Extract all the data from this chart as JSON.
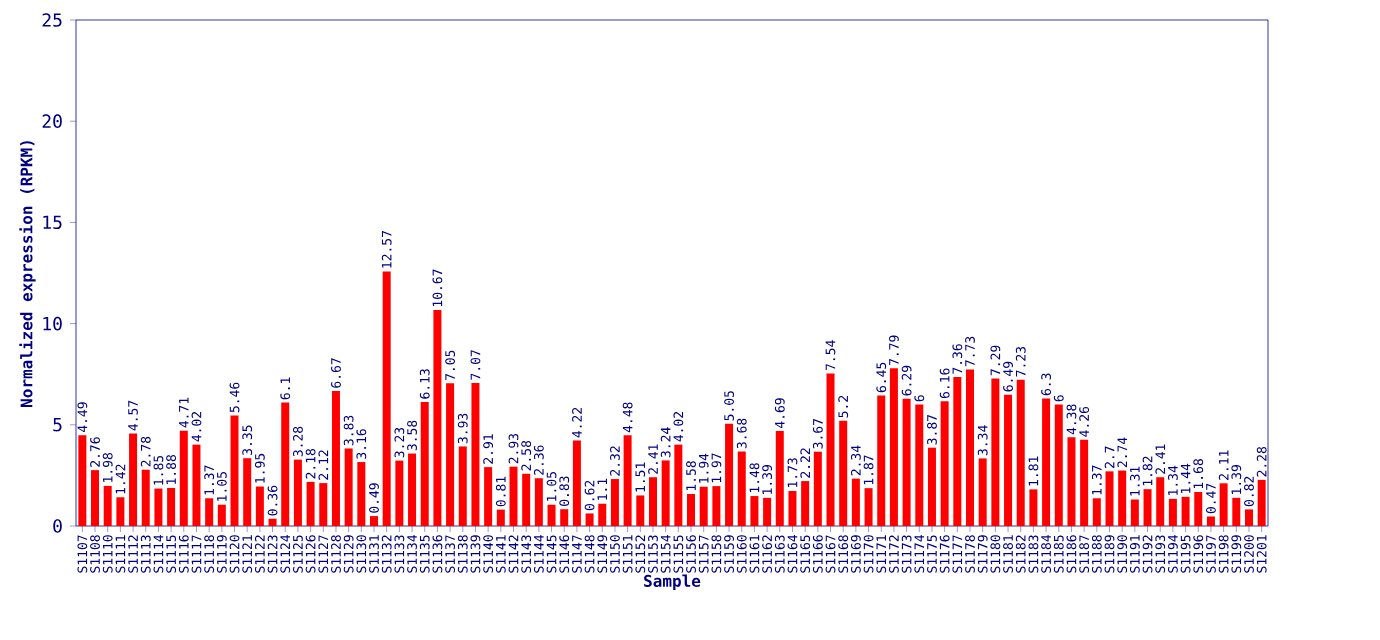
{
  "chart_data": {
    "type": "bar",
    "xlabel": "Sample",
    "ylabel": "Normalized expression (RPKM)",
    "categories": [
      "S1107",
      "S1108",
      "S1110",
      "S1111",
      "S1112",
      "S1113",
      "S1114",
      "S1115",
      "S1116",
      "S1117",
      "S1118",
      "S1119",
      "S1120",
      "S1121",
      "S1122",
      "S1123",
      "S1124",
      "S1125",
      "S1126",
      "S1127",
      "S1128",
      "S1129",
      "S1130",
      "S1131",
      "S1132",
      "S1133",
      "S1134",
      "S1135",
      "S1136",
      "S1137",
      "S1138",
      "S1139",
      "S1140",
      "S1141",
      "S1142",
      "S1143",
      "S1144",
      "S1145",
      "S1146",
      "S1147",
      "S1148",
      "S1149",
      "S1150",
      "S1151",
      "S1152",
      "S1153",
      "S1154",
      "S1155",
      "S1156",
      "S1157",
      "S1158",
      "S1159",
      "S1160",
      "S1161",
      "S1162",
      "S1163",
      "S1164",
      "S1165",
      "S1166",
      "S1167",
      "S1168",
      "S1169",
      "S1170",
      "S1171",
      "S1172",
      "S1173",
      "S1174",
      "S1175",
      "S1176",
      "S1177",
      "S1178",
      "S1179",
      "S1180",
      "S1181",
      "S1182",
      "S1183",
      "S1184",
      "S1185",
      "S1186",
      "S1187",
      "S1188",
      "S1189",
      "S1190",
      "S1191",
      "S1192",
      "S1193",
      "S1194",
      "S1195",
      "S1196",
      "S1197",
      "S1198",
      "S1199",
      "S1200",
      "S1201"
    ],
    "values": [
      4.49,
      2.76,
      1.98,
      1.42,
      4.57,
      2.78,
      1.85,
      1.88,
      4.71,
      4.02,
      1.37,
      1.05,
      5.46,
      3.35,
      1.95,
      0.36,
      6.1,
      3.28,
      2.18,
      2.12,
      6.67,
      3.83,
      3.16,
      0.49,
      12.57,
      3.23,
      3.58,
      6.13,
      10.67,
      7.05,
      3.93,
      7.07,
      2.91,
      0.81,
      2.93,
      2.58,
      2.36,
      1.05,
      0.83,
      4.22,
      0.62,
      1.1,
      2.32,
      4.48,
      1.51,
      2.41,
      3.24,
      4.02,
      1.58,
      1.94,
      1.97,
      5.05,
      3.68,
      1.48,
      1.39,
      4.69,
      1.73,
      2.22,
      3.67,
      7.54,
      5.2,
      2.34,
      1.87,
      6.45,
      7.79,
      6.29,
      6,
      3.87,
      6.16,
      7.36,
      7.73,
      3.34,
      7.29,
      6.49,
      7.23,
      1.81,
      6.3,
      6,
      4.38,
      4.26,
      1.37,
      2.7,
      2.74,
      1.31,
      1.82,
      2.41,
      1.34,
      1.44,
      1.68,
      0.47,
      2.11,
      1.39,
      0.82,
      2.28
    ],
    "value_labels": [
      "4.49",
      "2.76",
      "1.98",
      "1.42",
      "4.57",
      "2.78",
      "1.85",
      "1.88",
      "4.71",
      "4.02",
      "1.37",
      "1.05",
      "5.46",
      "3.35",
      "1.95",
      "0.36",
      "6.1",
      "3.28",
      "2.18",
      "2.12",
      "6.67",
      "3.83",
      "3.16",
      "0.49",
      "12.57",
      "3.23",
      "3.58",
      "6.13",
      "10.67",
      "7.05",
      "3.93",
      "7.07",
      "2.91",
      "0.81",
      "2.93",
      "2.58",
      "2.36",
      "1.05",
      "0.83",
      "4.22",
      "0.62",
      "1.1",
      "2.32",
      "4.48",
      "1.51",
      "2.41",
      "3.24",
      "4.02",
      "1.58",
      "1.94",
      "1.97",
      "5.05",
      "3.68",
      "1.48",
      "1.39",
      "4.69",
      "1.73",
      "2.22",
      "3.67",
      "7.54",
      "5.2",
      "2.34",
      "1.87",
      "6.45",
      "7.79",
      "6.29",
      "6",
      "3.87",
      "6.16",
      "7.36",
      "7.73",
      "3.34",
      "7.29",
      "6.49",
      "7.23",
      "1.81",
      "6.3",
      "6",
      "4.38",
      "4.26",
      "1.37",
      "2.7",
      "2.74",
      "1.31",
      "1.82",
      "2.41",
      "1.34",
      "1.44",
      "1.68",
      "0.47",
      "2.11",
      "1.39",
      "0.82",
      "2.28"
    ],
    "color": "#ff0000",
    "ylim": [
      0,
      25
    ],
    "yticks": [
      0,
      5,
      10,
      15,
      20,
      25
    ]
  }
}
